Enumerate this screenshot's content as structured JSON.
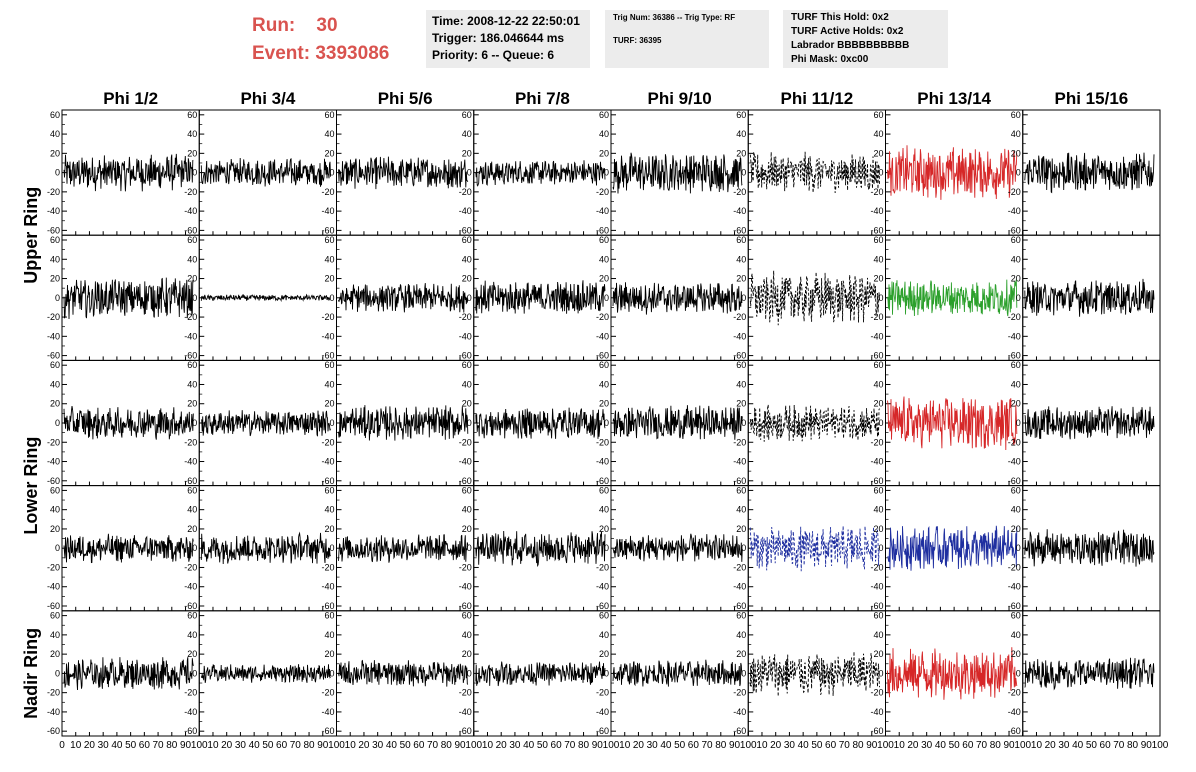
{
  "header": {
    "run_label": "Run:",
    "run_value": "30",
    "event_label": "Event:",
    "event_value": "3393086",
    "time": "Time: 2008-12-22 22:50:01",
    "trigger": "Trigger: 186.046644 ms",
    "priority": "Priority: 6 -- Queue: 6",
    "trig_info": "Trig Num: 36386 -- Trig Type: RF",
    "turf": "TURF: 36395",
    "turf_this_hold": "TURF This Hold: 0x2",
    "turf_active_holds": "TURF Active Holds: 0x2",
    "labrador": "Labrador BBBBBBBBBB",
    "phi_mask": "Phi Mask: 0xc00"
  },
  "colors": {
    "accent": "#d9534f",
    "red": "#d62728",
    "green": "#2ca02c",
    "blue": "#1f2fa0",
    "black": "#000000"
  },
  "chart_data": {
    "type": "line",
    "columns": [
      "Phi 1/2",
      "Phi 3/4",
      "Phi 5/6",
      "Phi 7/8",
      "Phi 9/10",
      "Phi 11/12",
      "Phi 13/14",
      "Phi 15/16"
    ],
    "rows": [
      "Upper Ring",
      "Upper Ring",
      "Lower Ring",
      "Lower Ring",
      "Nadir Ring"
    ],
    "row_labels": [
      "Upper Ring",
      "Lower Ring",
      "Nadir Ring"
    ],
    "xlim": [
      0,
      100
    ],
    "ylim": [
      -65,
      65
    ],
    "y_ticks": [
      -60,
      -40,
      -20,
      0,
      20,
      40,
      60
    ],
    "x_ticks": [
      0,
      10,
      20,
      30,
      40,
      50,
      60,
      70,
      80,
      90,
      100
    ],
    "y_tick_labels": [
      "-60",
      "-40",
      "-20",
      "0",
      "20",
      "40",
      "60"
    ],
    "x_tick_labels": [
      "0",
      "10",
      "20",
      "30",
      "40",
      "50",
      "60",
      "70",
      "80",
      "90",
      "100"
    ],
    "samples_per_trace": 260,
    "panels": [
      [
        {
          "color": "black",
          "amp": 18
        },
        {
          "color": "black",
          "amp": 14
        },
        {
          "color": "black",
          "amp": 16
        },
        {
          "color": "black",
          "amp": 13
        },
        {
          "color": "black",
          "amp": 20
        },
        {
          "color": "black",
          "amp": 20,
          "dashed": true
        },
        {
          "color": "red",
          "amp": 26
        },
        {
          "color": "black",
          "amp": 20
        }
      ],
      [
        {
          "color": "black",
          "amp": 20
        },
        {
          "color": "black",
          "amp": 3
        },
        {
          "color": "black",
          "amp": 14
        },
        {
          "color": "black",
          "amp": 17
        },
        {
          "color": "black",
          "amp": 16
        },
        {
          "color": "black",
          "amp": 26,
          "dashed": true
        },
        {
          "color": "green",
          "amp": 18
        },
        {
          "color": "black",
          "amp": 18
        }
      ],
      [
        {
          "color": "black",
          "amp": 16
        },
        {
          "color": "black",
          "amp": 13
        },
        {
          "color": "black",
          "amp": 17
        },
        {
          "color": "black",
          "amp": 16
        },
        {
          "color": "black",
          "amp": 17
        },
        {
          "color": "black",
          "amp": 18,
          "dashed": true
        },
        {
          "color": "red",
          "amp": 26
        },
        {
          "color": "black",
          "amp": 16
        }
      ],
      [
        {
          "color": "black",
          "amp": 14
        },
        {
          "color": "black",
          "amp": 15
        },
        {
          "color": "black",
          "amp": 14
        },
        {
          "color": "black",
          "amp": 17
        },
        {
          "color": "black",
          "amp": 14
        },
        {
          "color": "blue",
          "amp": 22,
          "dashed": true
        },
        {
          "color": "blue",
          "amp": 22
        },
        {
          "color": "black",
          "amp": 18
        }
      ],
      [
        {
          "color": "black",
          "amp": 16
        },
        {
          "color": "black",
          "amp": 9
        },
        {
          "color": "black",
          "amp": 13
        },
        {
          "color": "black",
          "amp": 12
        },
        {
          "color": "black",
          "amp": 13
        },
        {
          "color": "black",
          "amp": 22,
          "dashed": true
        },
        {
          "color": "red",
          "amp": 25
        },
        {
          "color": "black",
          "amp": 15
        }
      ]
    ]
  }
}
